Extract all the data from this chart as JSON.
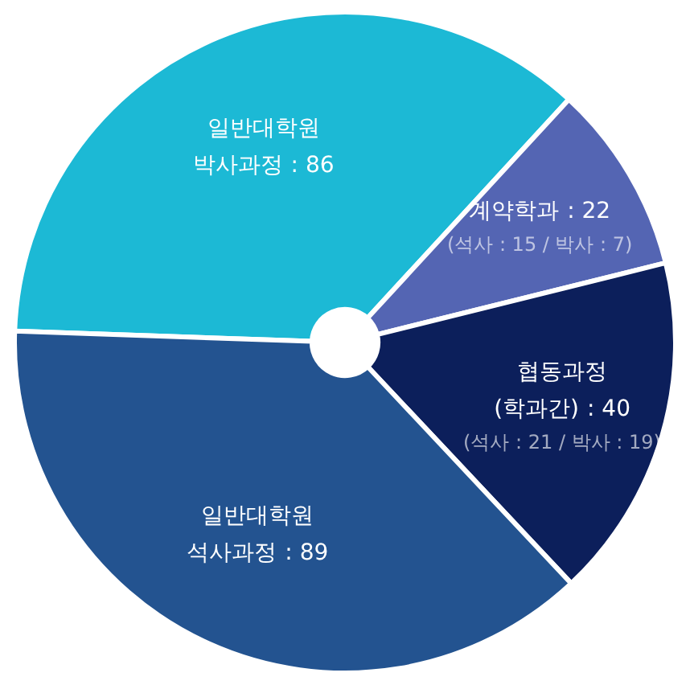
{
  "chart_data": {
    "type": "pie",
    "categories": [
      "일반대학원 박사과정",
      "계약학과",
      "협동과정 (학과간)",
      "일반대학원 석사과정"
    ],
    "values": [
      86,
      22,
      40,
      89
    ],
    "colors": [
      "#1cb9d5",
      "#5465b3",
      "#0c1f5b",
      "#235390"
    ],
    "value_labels": [
      ": 86",
      ": 22\n(석사 : 15 / 박사 : 7)",
      ": 40\n(석사 : 21 / 박사 : 19)",
      ": 89"
    ],
    "legend": false
  }
}
